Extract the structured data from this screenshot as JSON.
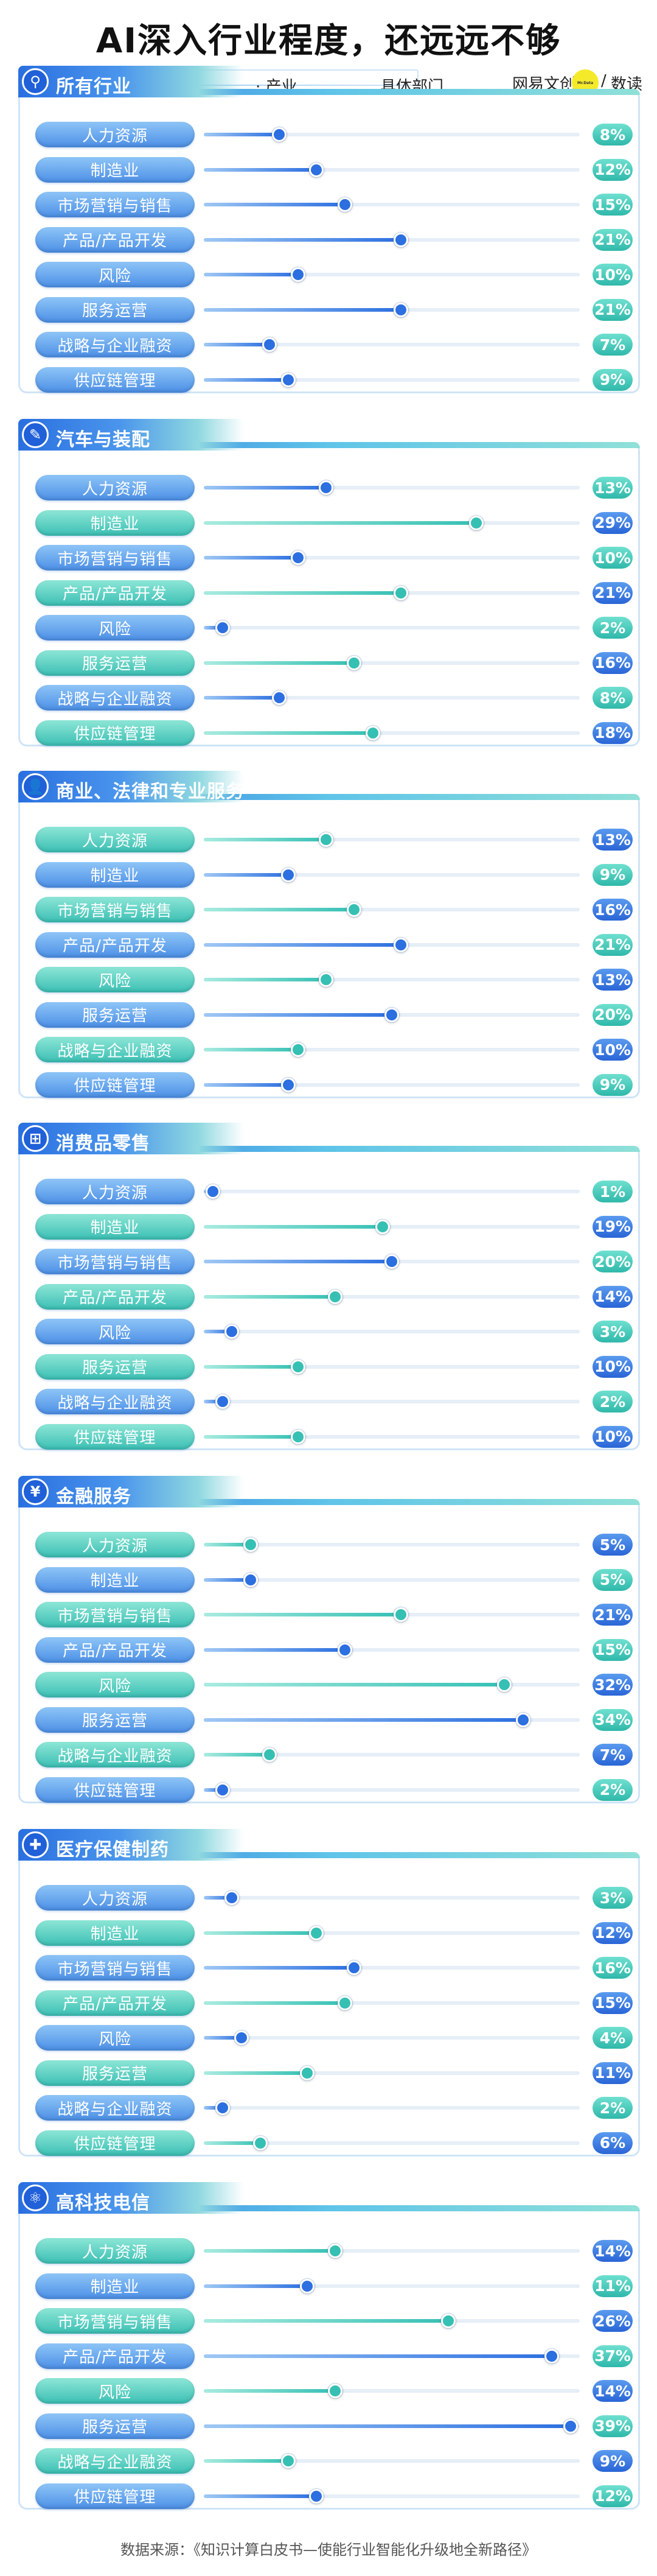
{
  "title": "AI深入行业程度，还远远不够",
  "header": {
    "all_industries": "所有行业",
    "industry": "产业",
    "department": "具体部门",
    "brand": "网易文创",
    "brand_sep": "/",
    "brand2": "数读",
    "logo_text": "Mr.Data"
  },
  "source": "数据来源：《知识计算白皮书—使能行业智能化升级地全新路径》",
  "colors": {
    "blue": "#2c6fe0",
    "teal": "#36c0b4",
    "title": "#111111"
  },
  "chart_data": {
    "type": "bar",
    "categories": [
      "人力资源",
      "制造业",
      "市场营销与销售",
      "产品/产品开发",
      "风险",
      "服务运营",
      "战略与企业融资",
      "供应链管理"
    ],
    "unit": "%",
    "xlim": [
      0,
      40
    ],
    "panels": [
      {
        "name": "所有行业",
        "icon": "tie-icon",
        "values": [
          8,
          12,
          15,
          21,
          10,
          21,
          7,
          9
        ]
      },
      {
        "name": "汽车与装配",
        "icon": "wrench-icon",
        "values": [
          13,
          29,
          10,
          21,
          2,
          16,
          8,
          18
        ]
      },
      {
        "name": "商业、法律和专业服务",
        "icon": "person-icon",
        "values": [
          13,
          9,
          16,
          21,
          13,
          20,
          10,
          9
        ]
      },
      {
        "name": "消费品零售",
        "icon": "basket-icon",
        "values": [
          1,
          19,
          20,
          14,
          3,
          10,
          2,
          10
        ]
      },
      {
        "name": "金融服务",
        "icon": "yen-icon",
        "values": [
          5,
          5,
          21,
          15,
          32,
          34,
          7,
          2
        ]
      },
      {
        "name": "医疗保健制药",
        "icon": "medkit-icon",
        "values": [
          3,
          12,
          16,
          15,
          4,
          11,
          2,
          6
        ]
      },
      {
        "name": "高科技电信",
        "icon": "atom-icon",
        "values": [
          14,
          11,
          26,
          37,
          14,
          39,
          9,
          12
        ]
      }
    ]
  }
}
